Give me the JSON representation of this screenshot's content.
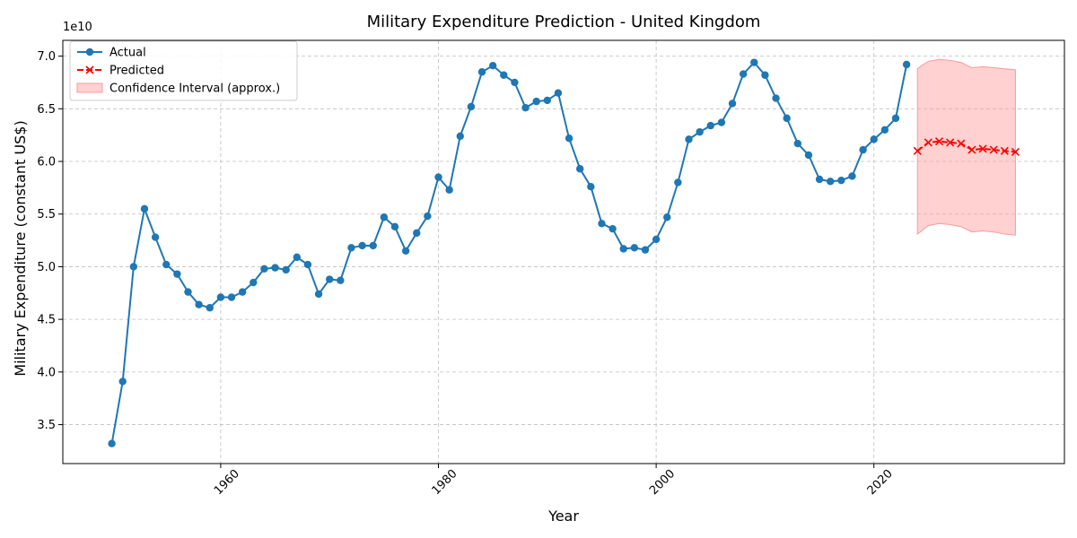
{
  "chart_data": {
    "type": "line",
    "title": "Military Expenditure Prediction - United Kingdom",
    "xlabel": "Year",
    "ylabel": "Military Expenditure (constant US$)",
    "y_offset_label": "1e10",
    "xlim": [
      1945.5,
      2037.5
    ],
    "ylim": [
      31300000000.0,
      71500000000.0
    ],
    "x_ticks": [
      1960,
      1980,
      2000,
      2020
    ],
    "x_tick_labels": [
      "1960",
      "1980",
      "2000",
      "2020"
    ],
    "y_ticks": [
      35000000000.0,
      40000000000.0,
      45000000000.0,
      50000000000.0,
      55000000000.0,
      60000000000.0,
      65000000000.0,
      70000000000.0
    ],
    "y_tick_labels": [
      "3.5",
      "4.0",
      "4.5",
      "5.0",
      "5.5",
      "6.0",
      "6.5",
      "7.0"
    ],
    "grid": true,
    "legend_position": "top-left",
    "series": [
      {
        "name": "Actual",
        "color": "#1f77b4",
        "marker": "circle",
        "x": [
          1950,
          1951,
          1952,
          1953,
          1954,
          1955,
          1956,
          1957,
          1958,
          1959,
          1960,
          1961,
          1962,
          1963,
          1964,
          1965,
          1966,
          1967,
          1968,
          1969,
          1970,
          1971,
          1972,
          1973,
          1974,
          1975,
          1976,
          1977,
          1978,
          1979,
          1980,
          1981,
          1982,
          1983,
          1984,
          1985,
          1986,
          1987,
          1988,
          1989,
          1990,
          1991,
          1992,
          1993,
          1994,
          1995,
          1996,
          1997,
          1998,
          1999,
          2000,
          2001,
          2002,
          2003,
          2004,
          2005,
          2006,
          2007,
          2008,
          2009,
          2010,
          2011,
          2012,
          2013,
          2014,
          2015,
          2016,
          2017,
          2018,
          2019,
          2020,
          2021,
          2022,
          2023
        ],
        "y": [
          33200000000.0,
          39100000000.0,
          50000000000.0,
          55500000000.0,
          52800000000.0,
          50200000000.0,
          49300000000.0,
          47600000000.0,
          46400000000.0,
          46100000000.0,
          47100000000.0,
          47100000000.0,
          47600000000.0,
          48500000000.0,
          49800000000.0,
          49900000000.0,
          49700000000.0,
          50900000000.0,
          50200000000.0,
          47400000000.0,
          48800000000.0,
          48700000000.0,
          51800000000.0,
          52000000000.0,
          52000000000.0,
          54700000000.0,
          53800000000.0,
          51500000000.0,
          53200000000.0,
          54800000000.0,
          58500000000.0,
          57300000000.0,
          62400000000.0,
          65200000000.0,
          68500000000.0,
          69100000000.0,
          68200000000.0,
          67500000000.0,
          65100000000.0,
          65700000000.0,
          65800000000.0,
          66500000000.0,
          62200000000.0,
          59300000000.0,
          57600000000.0,
          54100000000.0,
          53600000000.0,
          51700000000.0,
          51800000000.0,
          51600000000.0,
          52600000000.0,
          54700000000.0,
          58000000000.0,
          62100000000.0,
          62800000000.0,
          63400000000.0,
          63700000000.0,
          65500000000.0,
          68300000000.0,
          69400000000.0,
          68200000000.0,
          66000000000.0,
          64100000000.0,
          61700000000.0,
          60600000000.0,
          58300000000.0,
          58100000000.0,
          58200000000.0,
          58600000000.0,
          61100000000.0,
          62100000000.0,
          63000000000.0,
          64100000000.0,
          69200000000.0
        ]
      },
      {
        "name": "Predicted",
        "color": "#ff0000",
        "marker": "x",
        "x": [
          2024,
          2025,
          2026,
          2027,
          2028,
          2029,
          2030,
          2031,
          2032,
          2033
        ],
        "y": [
          61000000000.0,
          61800000000.0,
          61900000000.0,
          61800000000.0,
          61700000000.0,
          61100000000.0,
          61200000000.0,
          61100000000.0,
          61000000000.0,
          60900000000.0
        ]
      }
    ],
    "confidence_interval": {
      "name": "Confidence Interval (approx.)",
      "color": "#ff9999",
      "x": [
        2024,
        2024.5,
        2025,
        2026,
        2027,
        2028,
        2029,
        2030,
        2031,
        2032,
        2033
      ],
      "upper": [
        68800000000.0,
        69200000000.0,
        69500000000.0,
        69700000000.0,
        69600000000.0,
        69400000000.0,
        68900000000.0,
        69000000000.0,
        68900000000.0,
        68800000000.0,
        68700000000.0
      ],
      "lower": [
        53100000000.0,
        53500000000.0,
        53900000000.0,
        54100000000.0,
        54000000000.0,
        53800000000.0,
        53300000000.0,
        53400000000.0,
        53300000000.0,
        53100000000.0,
        53000000000.0
      ]
    }
  }
}
